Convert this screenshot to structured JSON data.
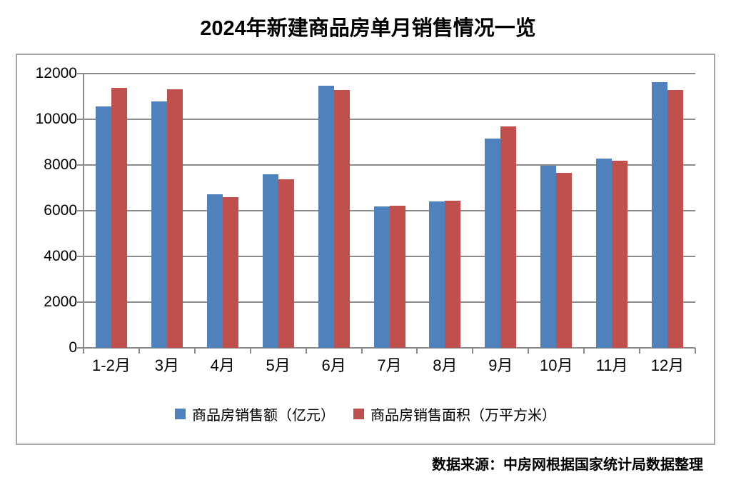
{
  "title": "2024年新建商品房单月销售情况一览",
  "source_note": "数据来源：中房网根据国家统计局数据整理",
  "colors": {
    "series_sales_value": "#4F81BD",
    "series_sales_area": "#C0504D",
    "gridline": "#8C8C8C",
    "frame_border": "#A6A6A6",
    "text": "#000000"
  },
  "chart_data": {
    "type": "bar",
    "title": "2024年新建商品房单月销售情况一览",
    "categories": [
      "1-2月",
      "3月",
      "4月",
      "5月",
      "6月",
      "7月",
      "8月",
      "9月",
      "10月",
      "11月",
      "12月"
    ],
    "series": [
      {
        "name": "商品房销售额（亿元）",
        "color": "#4F81BD",
        "values": [
          10566,
          10789,
          6712,
          7598,
          11468,
          6197,
          6393,
          9157,
          7975,
          8270,
          11625
        ]
      },
      {
        "name": "商品房销售面积（万平方米）",
        "color": "#C0504D",
        "values": [
          11369,
          11299,
          6584,
          7390,
          11274,
          6233,
          6453,
          9682,
          7646,
          8188,
          11267
        ]
      }
    ],
    "xlabel": "",
    "ylabel": "",
    "ylim": [
      0,
      12000
    ],
    "yticks": [
      0,
      2000,
      4000,
      6000,
      8000,
      10000,
      12000
    ],
    "grid": true,
    "legend_position": "bottom",
    "source_note": "数据来源：中房网根据国家统计局数据整理"
  }
}
